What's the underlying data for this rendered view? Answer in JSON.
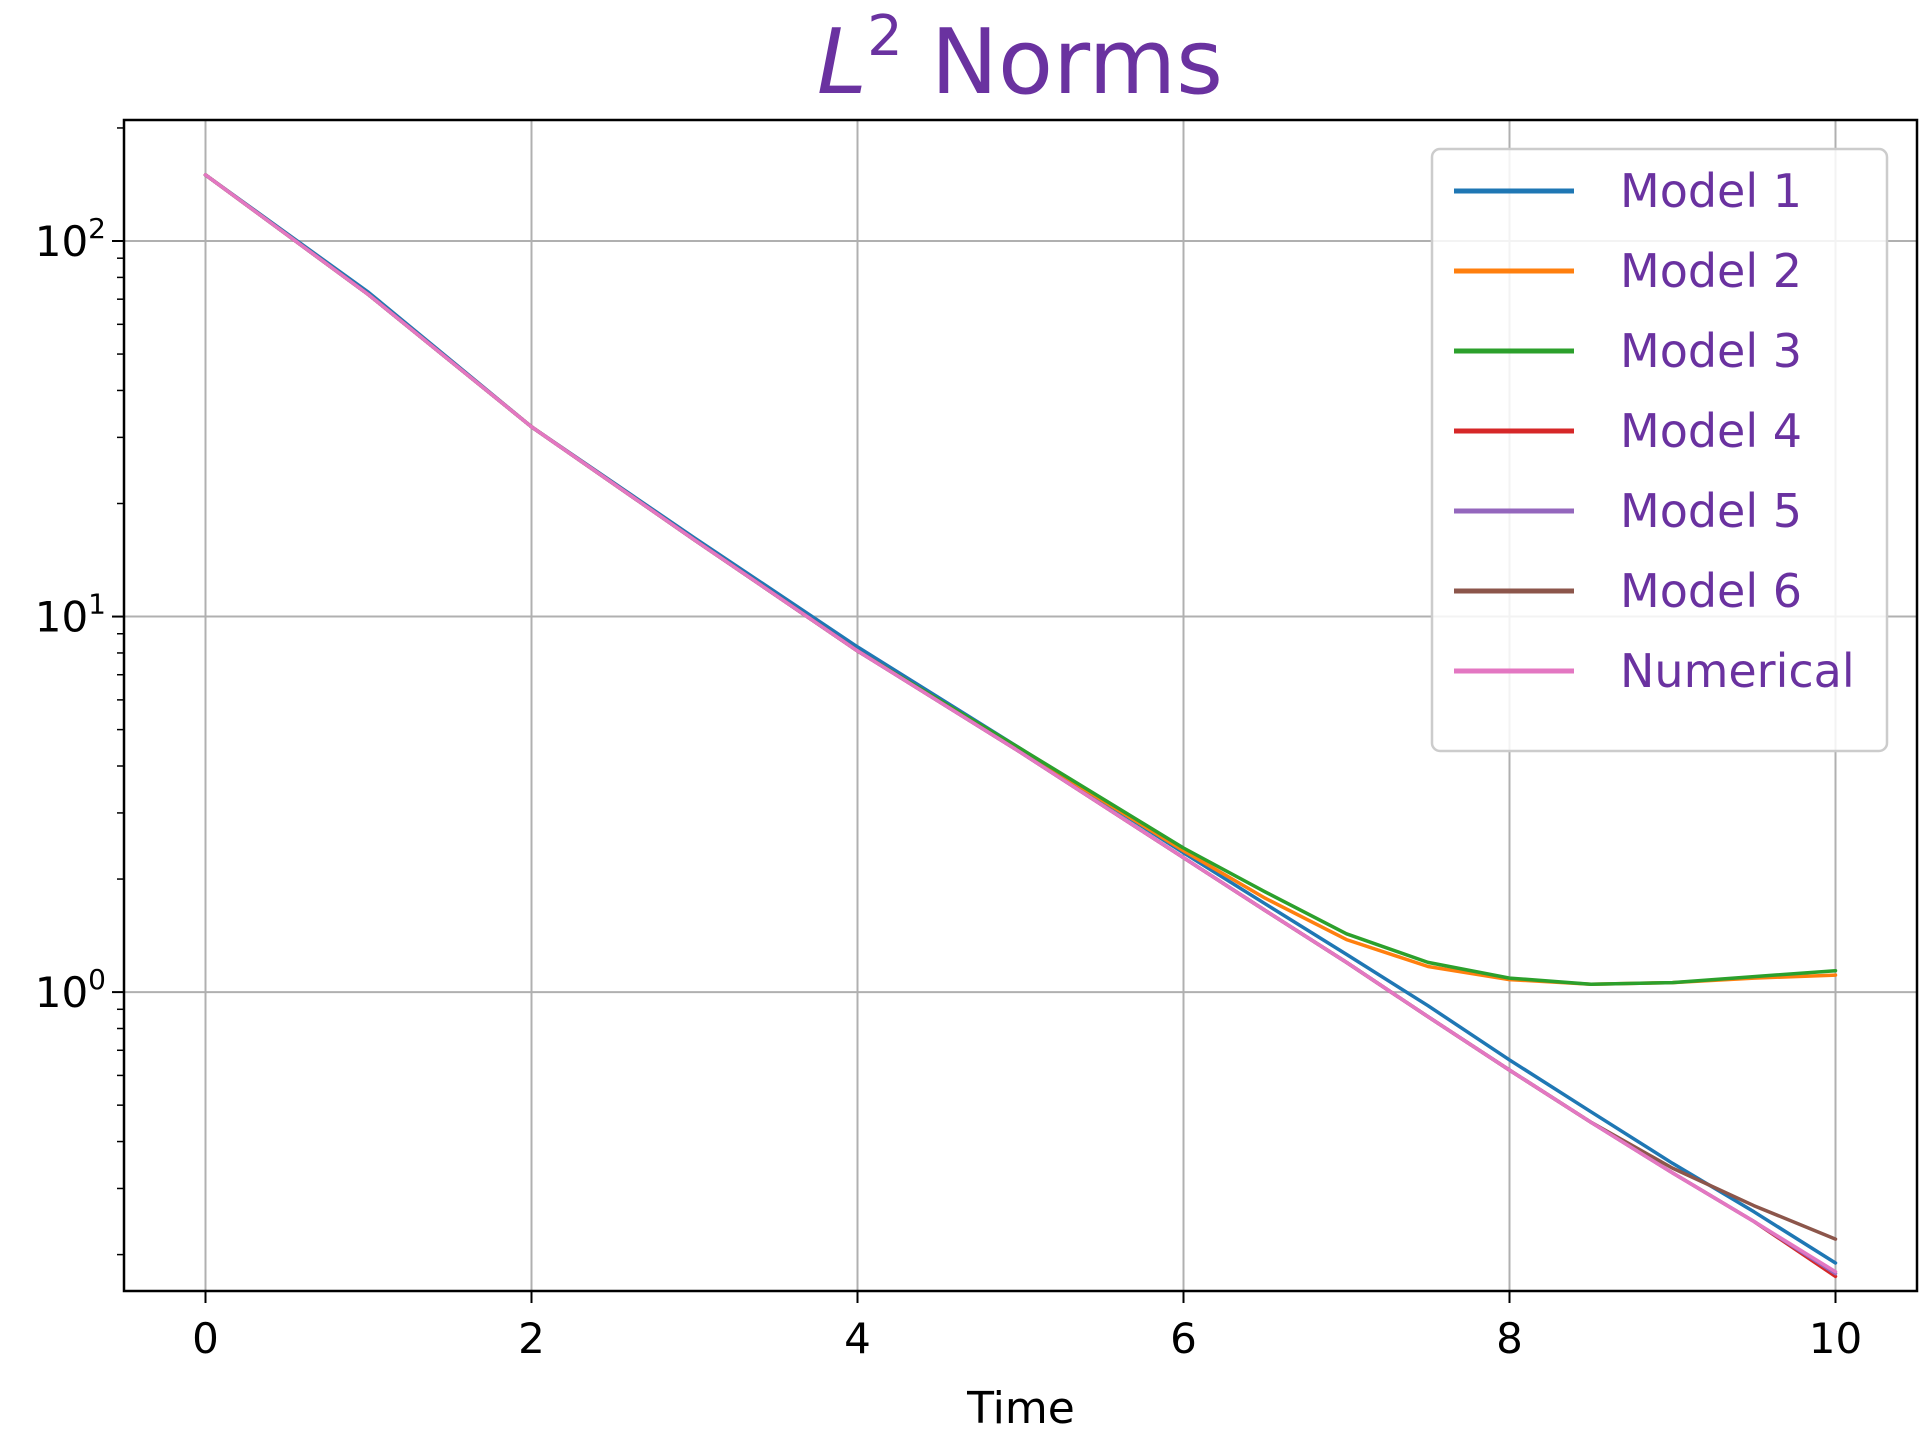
{
  "chart_data": {
    "type": "line",
    "title": "L² Norms",
    "title_base": "L",
    "title_sup": "2",
    "title_rest": "Norms",
    "title_color": "#6a32a0",
    "xlabel": "Time",
    "ylabel": "",
    "xlim": [
      -0.5,
      10.5
    ],
    "ylim": [
      0.16,
      210
    ],
    "yscale": "log",
    "grid": true,
    "legend_position": "top-right",
    "legend_text_color": "#6a32a0",
    "xticks": [
      {
        "value": 0,
        "label": "0"
      },
      {
        "value": 2,
        "label": "2"
      },
      {
        "value": 4,
        "label": "4"
      },
      {
        "value": 6,
        "label": "6"
      },
      {
        "value": 8,
        "label": "8"
      },
      {
        "value": 10,
        "label": "10"
      }
    ],
    "yticks": [
      {
        "value": 1,
        "base": "10",
        "exp": "0"
      },
      {
        "value": 10,
        "base": "10",
        "exp": "1"
      },
      {
        "value": 100,
        "base": "10",
        "exp": "2"
      }
    ],
    "x": [
      0,
      1,
      2,
      3,
      4,
      5,
      6,
      6.5,
      7,
      7.5,
      8,
      8.5,
      9,
      9.5,
      10
    ],
    "series": [
      {
        "name": "Model 1",
        "color": "#1f77b4",
        "values": [
          150,
          73,
          32,
          16.2,
          8.3,
          4.45,
          2.35,
          1.72,
          1.26,
          0.92,
          0.66,
          0.48,
          0.35,
          0.26,
          0.19
        ]
      },
      {
        "name": "Model 2",
        "color": "#ff7f0e",
        "values": [
          150,
          72,
          32,
          16.0,
          8.1,
          4.42,
          2.38,
          1.78,
          1.38,
          1.17,
          1.08,
          1.05,
          1.06,
          1.09,
          1.11
        ]
      },
      {
        "name": "Model 3",
        "color": "#2ca02c",
        "values": [
          150,
          72,
          32,
          16.0,
          8.1,
          4.45,
          2.42,
          1.85,
          1.43,
          1.2,
          1.09,
          1.05,
          1.06,
          1.1,
          1.14
        ]
      },
      {
        "name": "Model 4",
        "color": "#d62728",
        "values": [
          150,
          72,
          32,
          16.0,
          8.1,
          4.35,
          2.28,
          1.65,
          1.2,
          0.86,
          0.62,
          0.45,
          0.33,
          0.245,
          0.175
        ]
      },
      {
        "name": "Model 5",
        "color": "#9467bd",
        "values": [
          150,
          72,
          32,
          16.0,
          8.1,
          4.35,
          2.28,
          1.65,
          1.2,
          0.86,
          0.62,
          0.45,
          0.33,
          0.245,
          0.178
        ]
      },
      {
        "name": "Model 6",
        "color": "#8c564b",
        "values": [
          150,
          72,
          32,
          16.0,
          8.1,
          4.35,
          2.28,
          1.65,
          1.2,
          0.86,
          0.62,
          0.45,
          0.34,
          0.27,
          0.22
        ]
      },
      {
        "name": "Numerical",
        "color": "#e377c2",
        "values": [
          150,
          72,
          32,
          16.0,
          8.1,
          4.35,
          2.28,
          1.65,
          1.2,
          0.86,
          0.62,
          0.45,
          0.33,
          0.245,
          0.18
        ]
      }
    ]
  }
}
